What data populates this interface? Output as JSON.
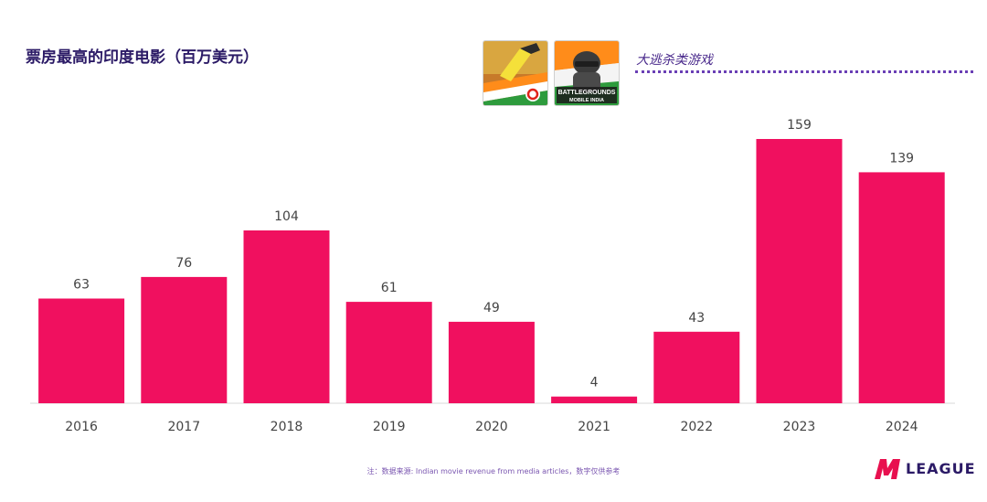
{
  "title": "票房最高的印度电影（百万美元）",
  "genre_label": "大逃杀类游戏",
  "games": [
    {
      "icon": "free-fire-india-icon"
    },
    {
      "icon": "battlegrounds-mobile-india-icon",
      "text_line1": "BATTLEGROUNDS",
      "text_line2": "MOBILE INDIA"
    }
  ],
  "source_note": "注：数据来源: Indian movie revenue from media articles，数字仅供参考",
  "logo": {
    "text": "LEAGUE",
    "icon": "m-league-logo-icon"
  },
  "colors": {
    "bar": "#f0105f",
    "title": "#2b1a66",
    "accent": "#6a3fb5"
  },
  "chart_data": {
    "type": "bar",
    "title": "票房最高的印度电影（百万美元）",
    "categories": [
      "2016",
      "2017",
      "2018",
      "2019",
      "2020",
      "2021",
      "2022",
      "2023",
      "2024"
    ],
    "values": [
      63,
      76,
      104,
      61,
      49,
      4,
      43,
      159,
      139
    ],
    "xlabel": "",
    "ylabel": "",
    "ylim": [
      0,
      165
    ],
    "grid": false,
    "legend": "none",
    "data_labels": true
  }
}
